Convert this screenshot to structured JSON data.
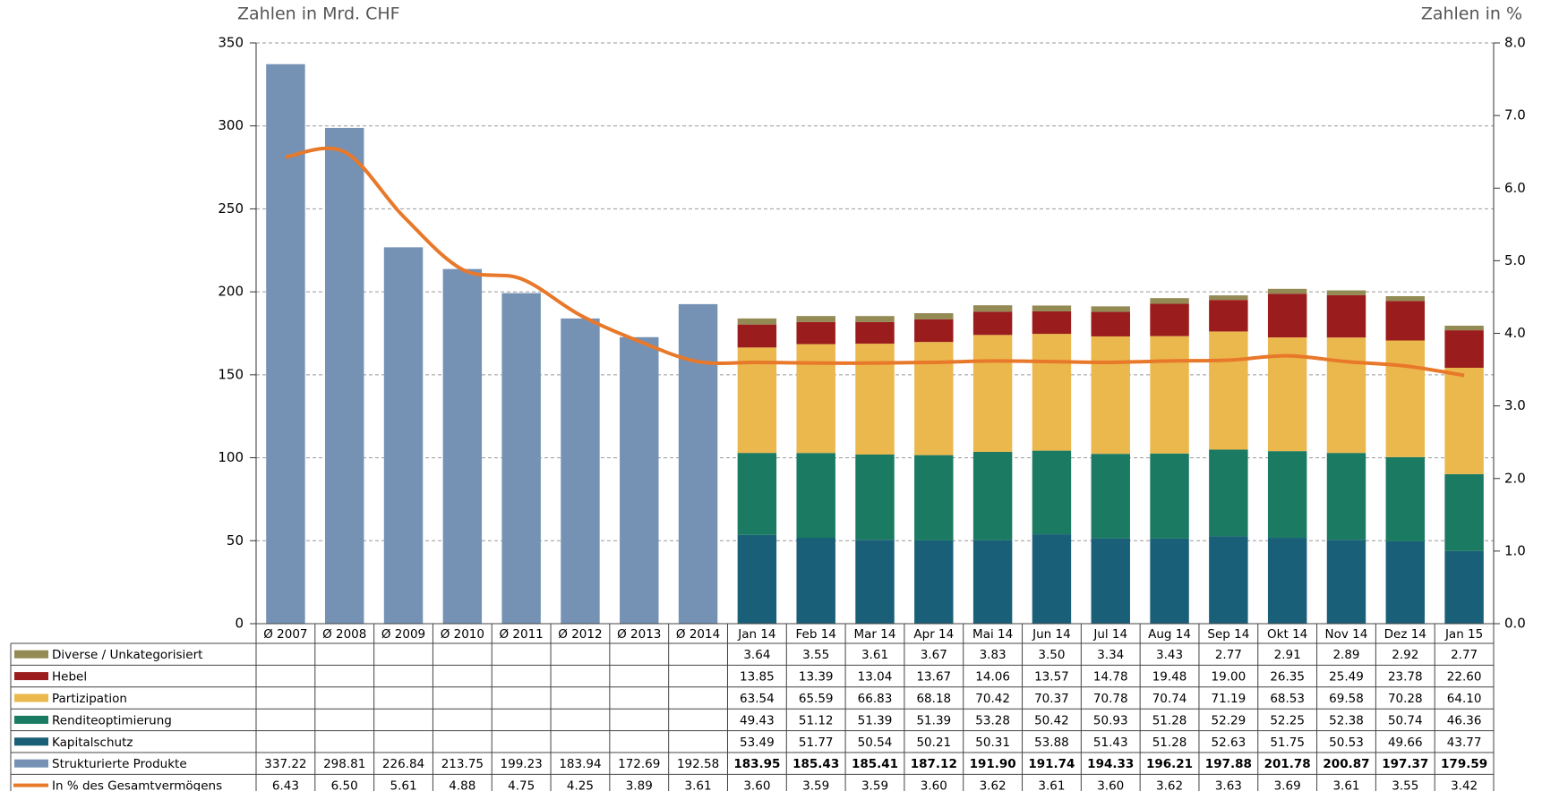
{
  "chart_data": {
    "type": "bar",
    "y_label": "Zahlen in Mrd. CHF",
    "y2_label": "Zahlen in %",
    "categories": [
      "Ø 2007",
      "Ø 2008",
      "Ø 2009",
      "Ø 2010",
      "Ø 2011",
      "Ø 2012",
      "Ø 2013",
      "Ø 2014",
      "Jan 14",
      "Feb 14",
      "Mar 14",
      "Apr 14",
      "Mai 14",
      "Jun 14",
      "Jul 14",
      "Aug 14",
      "Sep 14",
      "Okt 14",
      "Nov 14",
      "Dez 14",
      "Jan 15"
    ],
    "ylim": [
      0,
      350
    ],
    "yticks": [
      0,
      50,
      100,
      150,
      200,
      250,
      300,
      350
    ],
    "y2lim": [
      0,
      8
    ],
    "y2ticks": [
      {
        "value": 0,
        "label": "0.0"
      },
      {
        "value": 1,
        "label": "1.0"
      },
      {
        "value": 2,
        "label": "2.0"
      },
      {
        "value": 3,
        "label": "3.0"
      },
      {
        "value": 4,
        "label": "4.0"
      },
      {
        "value": 5,
        "label": "5.0"
      },
      {
        "value": 6,
        "label": "6.0"
      },
      {
        "value": 7,
        "label": "7.0"
      },
      {
        "value": 8,
        "label": "8.0"
      }
    ],
    "grid": true,
    "series": [
      {
        "name": "Diverse / Unkategorisiert",
        "color": "#948a54",
        "values": [
          null,
          null,
          null,
          null,
          null,
          null,
          null,
          null,
          3.64,
          3.55,
          3.61,
          3.67,
          3.83,
          3.5,
          3.34,
          3.43,
          2.77,
          2.91,
          2.89,
          2.92,
          2.77
        ],
        "value_labels": [
          null,
          null,
          null,
          null,
          null,
          null,
          null,
          null,
          "3.64",
          "3.55",
          "3.61",
          "3.67",
          "3.83",
          "3.50",
          "3.34",
          "3.43",
          "2.77",
          "2.91",
          "2.89",
          "2.92",
          "2.77"
        ]
      },
      {
        "name": "Hebel",
        "color": "#9b1c1c",
        "values": [
          null,
          null,
          null,
          null,
          null,
          null,
          null,
          null,
          13.85,
          13.39,
          13.04,
          13.67,
          14.06,
          13.57,
          14.78,
          19.48,
          19.0,
          26.35,
          25.49,
          23.78,
          22.6
        ],
        "value_labels": [
          null,
          null,
          null,
          null,
          null,
          null,
          null,
          null,
          "13.85",
          "13.39",
          "13.04",
          "13.67",
          "14.06",
          "13.57",
          "14.78",
          "19.48",
          "19.00",
          "26.35",
          "25.49",
          "23.78",
          "22.60"
        ]
      },
      {
        "name": "Partizipation",
        "color": "#ebb84d",
        "values": [
          null,
          null,
          null,
          null,
          null,
          null,
          null,
          null,
          63.54,
          65.59,
          66.83,
          68.18,
          70.42,
          70.37,
          70.78,
          70.74,
          71.19,
          68.53,
          69.58,
          70.28,
          64.1
        ],
        "value_labels": [
          null,
          null,
          null,
          null,
          null,
          null,
          null,
          null,
          "63.54",
          "65.59",
          "66.83",
          "68.18",
          "70.42",
          "70.37",
          "70.78",
          "70.74",
          "71.19",
          "68.53",
          "69.58",
          "70.28",
          "64.10"
        ]
      },
      {
        "name": "Renditeoptimierung",
        "color": "#1b7a62",
        "values": [
          null,
          null,
          null,
          null,
          null,
          null,
          null,
          null,
          49.43,
          51.12,
          51.39,
          51.39,
          53.28,
          50.42,
          50.93,
          51.28,
          52.29,
          52.25,
          52.38,
          50.74,
          46.36
        ],
        "value_labels": [
          null,
          null,
          null,
          null,
          null,
          null,
          null,
          null,
          "49.43",
          "51.12",
          "51.39",
          "51.39",
          "53.28",
          "50.42",
          "50.93",
          "51.28",
          "52.29",
          "52.25",
          "52.38",
          "50.74",
          "46.36"
        ]
      },
      {
        "name": "Kapitalschutz",
        "color": "#1a5f78",
        "values": [
          null,
          null,
          null,
          null,
          null,
          null,
          null,
          null,
          53.49,
          51.77,
          50.54,
          50.21,
          50.31,
          53.88,
          51.43,
          51.28,
          52.63,
          51.75,
          50.53,
          49.66,
          43.77
        ],
        "value_labels": [
          null,
          null,
          null,
          null,
          null,
          null,
          null,
          null,
          "53.49",
          "51.77",
          "50.54",
          "50.21",
          "50.31",
          "53.88",
          "51.43",
          "51.28",
          "52.63",
          "51.75",
          "50.53",
          "49.66",
          "43.77"
        ]
      },
      {
        "name": "Strukturierte Produkte",
        "color": "#7592b5",
        "values": [
          337.22,
          298.81,
          226.84,
          213.75,
          199.23,
          183.94,
          172.69,
          192.58,
          183.95,
          185.43,
          185.41,
          187.12,
          191.9,
          191.74,
          194.33,
          196.21,
          197.88,
          201.78,
          200.87,
          197.37,
          179.59
        ],
        "value_labels": [
          "337.22",
          "298.81",
          "226.84",
          "213.75",
          "199.23",
          "183.94",
          "172.69",
          "192.58",
          "183.95",
          "185.43",
          "185.41",
          "187.12",
          "191.90",
          "191.74",
          "194.33",
          "196.21",
          "197.88",
          "201.78",
          "200.87",
          "197.37",
          "179.59"
        ]
      },
      {
        "name": "In % des Gesamtvermögens",
        "color": "#e8782a",
        "axis": "y2",
        "values": [
          6.43,
          6.5,
          5.61,
          4.88,
          4.75,
          4.25,
          3.89,
          3.61,
          3.6,
          3.59,
          3.59,
          3.6,
          3.62,
          3.61,
          3.6,
          3.62,
          3.63,
          3.69,
          3.61,
          3.55,
          3.42
        ],
        "value_labels": [
          "6.43",
          "6.50",
          "5.61",
          "4.88",
          "4.75",
          "4.25",
          "3.89",
          "3.61",
          "3.60",
          "3.59",
          "3.59",
          "3.60",
          "3.62",
          "3.61",
          "3.60",
          "3.62",
          "3.63",
          "3.69",
          "3.61",
          "3.55",
          "3.42"
        ]
      }
    ]
  }
}
